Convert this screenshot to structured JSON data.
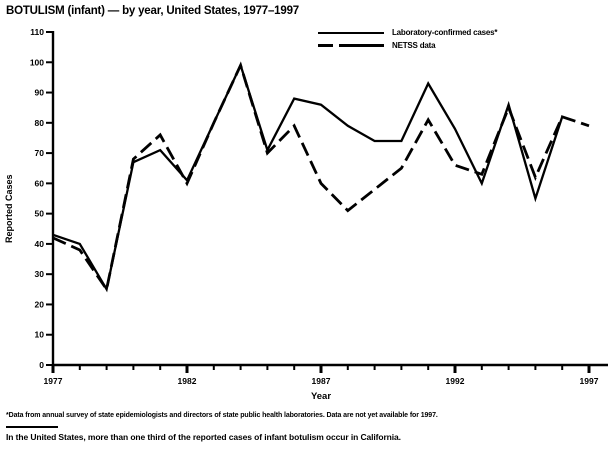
{
  "title": "BOTULISM (infant) — by year, United States, 1977–1997",
  "legend": [
    {
      "label": "Laboratory-confirmed cases*",
      "style": "solid"
    },
    {
      "label": "NETSS data",
      "style": "dashed"
    }
  ],
  "footnote": "*Data from annual survey of state epidemiologists and directors of state public health laboratories. Data are not yet available for 1997.",
  "caption": "In the United States, more than one third of the reported cases of infant botulism occur in California.",
  "colors": {
    "ink": "#000000",
    "background": "#ffffff"
  },
  "chart_data": {
    "type": "line",
    "title": "BOTULISM (infant) — by year, United States, 1977–1997",
    "xlabel": "Year",
    "ylabel": "Reported Cases",
    "ylim": [
      0,
      110
    ],
    "ytick_interval": 10,
    "grid": false,
    "legend_position": "top-right",
    "x": [
      1977,
      1978,
      1979,
      1980,
      1981,
      1982,
      1983,
      1984,
      1985,
      1986,
      1987,
      1988,
      1989,
      1990,
      1991,
      1992,
      1993,
      1994,
      1995,
      1996,
      1997
    ],
    "xtick_labels": [
      "1977",
      "1982",
      "1987",
      "1992",
      "1997"
    ],
    "series": [
      {
        "name": "Laboratory-confirmed cases*",
        "style": "solid",
        "values": [
          43,
          40,
          25,
          67,
          71,
          61,
          80,
          99,
          71,
          88,
          86,
          79,
          74,
          74,
          93,
          78,
          60,
          86,
          55,
          82,
          null
        ]
      },
      {
        "name": "NETSS data",
        "style": "dashed",
        "values": [
          42,
          38,
          25,
          68,
          76,
          60,
          80,
          99,
          70,
          79,
          60,
          51,
          58,
          65,
          81,
          66,
          63,
          85,
          62,
          82,
          79
        ]
      }
    ]
  }
}
